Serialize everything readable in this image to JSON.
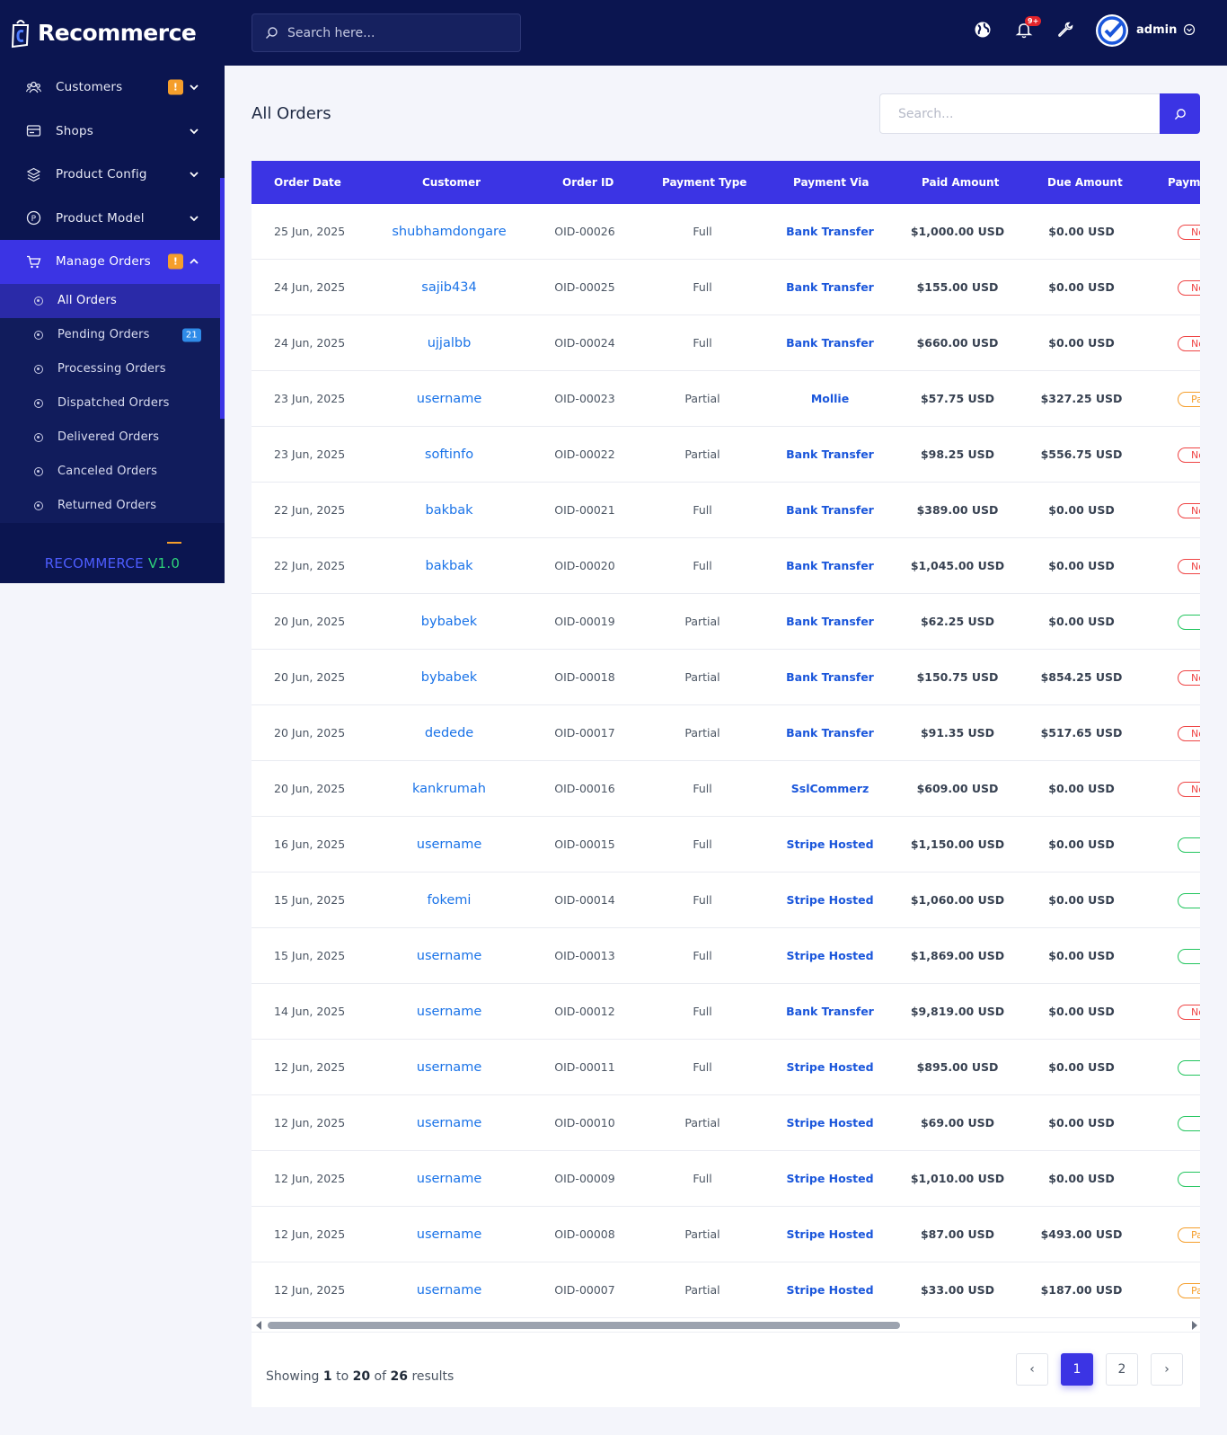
{
  "brand": {
    "name": "Recommerce"
  },
  "sidebar": {
    "items": [
      {
        "label": "Customers",
        "icon": "users-icon",
        "warn": "!"
      },
      {
        "label": "Shops",
        "icon": "shop-icon"
      },
      {
        "label": "Product Config",
        "icon": "config-icon"
      },
      {
        "label": "Product Model",
        "icon": "model-icon"
      },
      {
        "label": "Manage Orders",
        "icon": "cart-icon",
        "warn": "!"
      }
    ],
    "submenu": [
      {
        "label": "All Orders"
      },
      {
        "label": "Pending Orders",
        "count": "21"
      },
      {
        "label": "Processing Orders"
      },
      {
        "label": "Dispatched Orders"
      },
      {
        "label": "Delivered Orders"
      },
      {
        "label": "Canceled Orders"
      },
      {
        "label": "Returned Orders"
      }
    ],
    "version_name": "RECOMMERCE",
    "version_num": "V1.0"
  },
  "topbar": {
    "search_placeholder": "Search here...",
    "notif_count": "9+",
    "user": "admin"
  },
  "page": {
    "title": "All Orders",
    "search_placeholder": "Search..."
  },
  "table": {
    "headers": [
      "Order Date",
      "Customer",
      "Order ID",
      "Payment Type",
      "Payment Via",
      "Paid Amount",
      "Due Amount",
      "Paym"
    ],
    "rows": [
      {
        "date": "25 Jun, 2025",
        "customer": "shubhamdongare",
        "id": "OID-00026",
        "type": "Full",
        "via": "Bank Transfer",
        "paid": "$1,000.00 USD",
        "due": "$0.00 USD",
        "status": "not",
        "status_label": "Not"
      },
      {
        "date": "24 Jun, 2025",
        "customer": "sajib434",
        "id": "OID-00025",
        "type": "Full",
        "via": "Bank Transfer",
        "paid": "$155.00 USD",
        "due": "$0.00 USD",
        "status": "not",
        "status_label": "Not"
      },
      {
        "date": "24 Jun, 2025",
        "customer": "ujjalbb",
        "id": "OID-00024",
        "type": "Full",
        "via": "Bank Transfer",
        "paid": "$660.00 USD",
        "due": "$0.00 USD",
        "status": "not",
        "status_label": "Not"
      },
      {
        "date": "23 Jun, 2025",
        "customer": "username",
        "id": "OID-00023",
        "type": "Partial",
        "via": "Mollie",
        "paid": "$57.75 USD",
        "due": "$327.25 USD",
        "status": "partial",
        "status_label": "Partial"
      },
      {
        "date": "23 Jun, 2025",
        "customer": "softinfo",
        "id": "OID-00022",
        "type": "Partial",
        "via": "Bank Transfer",
        "paid": "$98.25 USD",
        "due": "$556.75 USD",
        "status": "not",
        "status_label": "Not"
      },
      {
        "date": "22 Jun, 2025",
        "customer": "bakbak",
        "id": "OID-00021",
        "type": "Full",
        "via": "Bank Transfer",
        "paid": "$389.00 USD",
        "due": "$0.00 USD",
        "status": "not",
        "status_label": "Not"
      },
      {
        "date": "22 Jun, 2025",
        "customer": "bakbak",
        "id": "OID-00020",
        "type": "Full",
        "via": "Bank Transfer",
        "paid": "$1,045.00 USD",
        "due": "$0.00 USD",
        "status": "not",
        "status_label": "Not"
      },
      {
        "date": "20 Jun, 2025",
        "customer": "bybabek",
        "id": "OID-00019",
        "type": "Partial",
        "via": "Bank Transfer",
        "paid": "$62.25 USD",
        "due": "$0.00 USD",
        "status": "paid",
        "status_label": ""
      },
      {
        "date": "20 Jun, 2025",
        "customer": "bybabek",
        "id": "OID-00018",
        "type": "Partial",
        "via": "Bank Transfer",
        "paid": "$150.75 USD",
        "due": "$854.25 USD",
        "status": "not",
        "status_label": "Not"
      },
      {
        "date": "20 Jun, 2025",
        "customer": "dedede",
        "id": "OID-00017",
        "type": "Partial",
        "via": "Bank Transfer",
        "paid": "$91.35 USD",
        "due": "$517.65 USD",
        "status": "not",
        "status_label": "Not"
      },
      {
        "date": "20 Jun, 2025",
        "customer": "kankrumah",
        "id": "OID-00016",
        "type": "Full",
        "via": "SslCommerz",
        "paid": "$609.00 USD",
        "due": "$0.00 USD",
        "status": "not",
        "status_label": "Not"
      },
      {
        "date": "16 Jun, 2025",
        "customer": "username",
        "id": "OID-00015",
        "type": "Full",
        "via": "Stripe Hosted",
        "paid": "$1,150.00 USD",
        "due": "$0.00 USD",
        "status": "paid",
        "status_label": ""
      },
      {
        "date": "15 Jun, 2025",
        "customer": "fokemi",
        "id": "OID-00014",
        "type": "Full",
        "via": "Stripe Hosted",
        "paid": "$1,060.00 USD",
        "due": "$0.00 USD",
        "status": "paid",
        "status_label": ""
      },
      {
        "date": "15 Jun, 2025",
        "customer": "username",
        "id": "OID-00013",
        "type": "Full",
        "via": "Stripe Hosted",
        "paid": "$1,869.00 USD",
        "due": "$0.00 USD",
        "status": "paid",
        "status_label": ""
      },
      {
        "date": "14 Jun, 2025",
        "customer": "username",
        "id": "OID-00012",
        "type": "Full",
        "via": "Bank Transfer",
        "paid": "$9,819.00 USD",
        "due": "$0.00 USD",
        "status": "not",
        "status_label": "Not"
      },
      {
        "date": "12 Jun, 2025",
        "customer": "username",
        "id": "OID-00011",
        "type": "Full",
        "via": "Stripe Hosted",
        "paid": "$895.00 USD",
        "due": "$0.00 USD",
        "status": "paid",
        "status_label": ""
      },
      {
        "date": "12 Jun, 2025",
        "customer": "username",
        "id": "OID-00010",
        "type": "Partial",
        "via": "Stripe Hosted",
        "paid": "$69.00 USD",
        "due": "$0.00 USD",
        "status": "paid",
        "status_label": ""
      },
      {
        "date": "12 Jun, 2025",
        "customer": "username",
        "id": "OID-00009",
        "type": "Full",
        "via": "Stripe Hosted",
        "paid": "$1,010.00 USD",
        "due": "$0.00 USD",
        "status": "paid",
        "status_label": ""
      },
      {
        "date": "12 Jun, 2025",
        "customer": "username",
        "id": "OID-00008",
        "type": "Partial",
        "via": "Stripe Hosted",
        "paid": "$87.00 USD",
        "due": "$493.00 USD",
        "status": "partial",
        "status_label": "Partial"
      },
      {
        "date": "12 Jun, 2025",
        "customer": "username",
        "id": "OID-00007",
        "type": "Partial",
        "via": "Stripe Hosted",
        "paid": "$33.00 USD",
        "due": "$187.00 USD",
        "status": "partial",
        "status_label": "Partial"
      }
    ]
  },
  "pagination": {
    "showing_prefix": "Showing",
    "from": "1",
    "to_word": "to",
    "to": "20",
    "of_word": "of",
    "total": "26",
    "results_word": "results",
    "prev": "‹",
    "next": "›",
    "pages": [
      "1",
      "2"
    ]
  },
  "colors": {
    "primary": "#3b34e4",
    "sidebar_bg": "#0b1550",
    "link": "#1a73e8",
    "not_paid": "#ef4444",
    "partial": "#f59e2b",
    "paid": "#22c55e"
  }
}
